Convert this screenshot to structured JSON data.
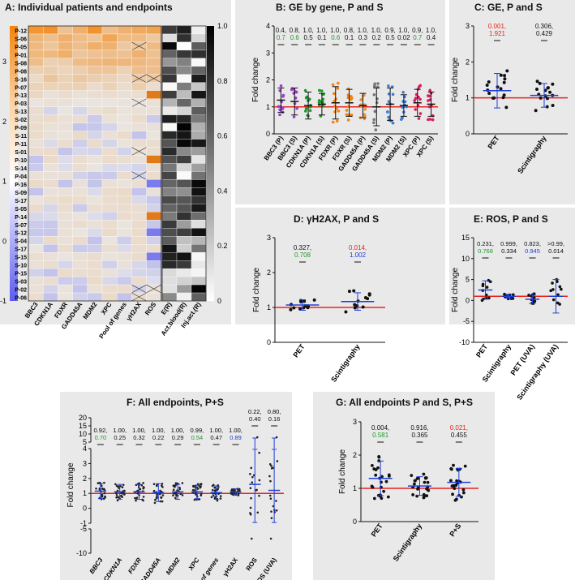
{
  "colors": {
    "red": "#e8231b",
    "green": "#1e9a2a",
    "blue": "#1d3fd6",
    "black": "#111111",
    "orange": "#f4840d",
    "purple": "#5c5cf0"
  },
  "chart_data": [
    {
      "id": "A",
      "type": "heatmap",
      "title": "A: Individual patients and endpoints",
      "rows": [
        "P-12",
        "S-06",
        "P-05",
        "P-01",
        "S-08",
        "P-08",
        "S-16",
        "P-07",
        "P-13",
        "P-03",
        "S-13",
        "S-02",
        "P-09",
        "S-11",
        "P-11",
        "S-01",
        "P-10",
        "S-14",
        "P-04",
        "P-16",
        "S-09",
        "S-17",
        "S-05",
        "P-14",
        "S-07",
        "S-12",
        "S-04",
        "S-17",
        "S-15",
        "S-10",
        "P-15",
        "S-03",
        "P-02",
        "P-06"
      ],
      "gene_columns": [
        "BBC3",
        "CDKN1A",
        "FDXR",
        "GADD45A",
        "MDM2",
        "XPC",
        "Pool of genes",
        "γH2AX",
        "ROS"
      ],
      "dose_columns": [
        "E(R)",
        "Act.blood(R)",
        "Inj.act.(R)"
      ],
      "left_scale": {
        "ticks": [
          3,
          2,
          1,
          0,
          -1
        ],
        "range": [
          -1,
          3.6
        ]
      },
      "right_scale": {
        "ticks": [
          "1.0",
          "0.8",
          "0.6",
          "0.4",
          "0.2",
          "0"
        ],
        "range": [
          0,
          1
        ]
      }
    },
    {
      "id": "B",
      "type": "scatter",
      "title": "B: GE by gene, P and S",
      "categories": [
        "BBC3 (P)",
        "BBC3 (S)",
        "CDKN1A (P)",
        "CDKN1A (S)",
        "FDXR (P)",
        "FDXR (S)",
        "GADD45A (P)",
        "GADD45A (S)",
        "MDM2 (P)",
        "MDM2 (S)",
        "XPC (P)",
        "XPC (S)"
      ],
      "ylabel": "Fold change",
      "ylim": [
        0,
        4
      ],
      "yticks": [
        0,
        1,
        2,
        3,
        4
      ],
      "means": [
        1.25,
        1.2,
        1.05,
        1.1,
        1.15,
        1.15,
        1.05,
        1.0,
        1.1,
        1.05,
        1.15,
        1.1
      ],
      "sd": [
        0.45,
        0.5,
        0.5,
        0.4,
        0.6,
        0.5,
        0.45,
        0.7,
        0.6,
        0.4,
        0.5,
        0.45
      ],
      "annot1": [
        "0.4,",
        "0.8,",
        "1.0,",
        "1.0,",
        "1.0,",
        "0.8,",
        "1.0,",
        "1.0,",
        "0.9,",
        "1.0,",
        "0.9,",
        "1.0,"
      ],
      "annot2": [
        "0.7",
        "0.6",
        "0.5",
        "0.1",
        "0.6",
        "0.1",
        "0.3",
        "0.2",
        "0.5",
        "0.02",
        "0.7",
        "0.4"
      ],
      "annot2_color": [
        "green",
        "green",
        "black",
        "black",
        "green",
        "black",
        "black",
        "black",
        "black",
        "black",
        "green",
        "black"
      ]
    },
    {
      "id": "C",
      "type": "scatter",
      "title": "C: GE, P and S",
      "categories": [
        "PET",
        "Scintigraphy"
      ],
      "ylabel": "Fold change",
      "ylim": [
        0,
        3
      ],
      "yticks": [
        0,
        1,
        2,
        3
      ],
      "means": [
        1.2,
        1.07
      ],
      "sd": [
        0.48,
        0.33
      ],
      "annot1": [
        "0.001,",
        "0.306,"
      ],
      "annot2": [
        "1.921",
        "0.429"
      ],
      "annot1_color": [
        "red",
        "black"
      ],
      "annot2_color": [
        "red",
        "black"
      ]
    },
    {
      "id": "D",
      "type": "scatter",
      "title": "D: γH2AX, P and S",
      "categories": [
        "PET",
        "Scintigraphy"
      ],
      "ylabel": "Fold change",
      "ylim": [
        0,
        3
      ],
      "yticks": [
        0,
        1,
        2,
        3
      ],
      "means": [
        1.07,
        1.17
      ],
      "sd": [
        0.15,
        0.25
      ],
      "annot1": [
        "0.327,",
        "0.014,"
      ],
      "annot2": [
        "0.708",
        "1.002"
      ],
      "annot1_color": [
        "black",
        "red"
      ],
      "annot2_color": [
        "green",
        "blue"
      ]
    },
    {
      "id": "E",
      "type": "scatter",
      "title": "E: ROS, P and S",
      "categories": [
        "PET",
        "Scintigraphy",
        "PET (UVA)",
        "Scintigraphy (UVA)"
      ],
      "ylabel": "Fold change",
      "ylim": [
        -10,
        15
      ],
      "yticks": [
        -10,
        -5,
        0,
        5,
        10,
        15
      ],
      "means": [
        2.5,
        1.0,
        0.3,
        1.0
      ],
      "sd": [
        2.2,
        0.5,
        1.0,
        4.0
      ],
      "annot1": [
        "0.231,",
        "0.999,",
        "0.823,",
        ">0.99,"
      ],
      "annot2": [
        "0.768",
        "0.334",
        "0.945",
        "0.014"
      ],
      "annot2_color": [
        "green",
        "black",
        "blue",
        "black"
      ]
    },
    {
      "id": "F",
      "type": "scatter",
      "title": "F: All endpoints, P+S",
      "categories": [
        "BBC3",
        "CDKN1A",
        "FDXR",
        "GADD45A",
        "MDM2",
        "XPC",
        "Pool of genes",
        "γH2AX",
        "ROS",
        "ROS (UVA)"
      ],
      "ylabel": "Fold change",
      "yticks_lower": [
        -10,
        -5
      ],
      "yticks_main": [
        -1,
        0,
        1,
        2,
        3,
        4
      ],
      "yticks_upper": [
        5,
        10,
        15,
        20
      ],
      "means": [
        1.15,
        1.1,
        1.1,
        1.05,
        1.1,
        1.1,
        1.05,
        1.1,
        1.6,
        1.2
      ],
      "sd": [
        0.5,
        0.5,
        0.5,
        0.6,
        0.5,
        0.45,
        0.45,
        0.2,
        3.5,
        3.5
      ],
      "annot1": [
        "0.92,",
        "1.00,",
        "1.00,",
        "1.00,",
        "1.00,",
        "0.99,",
        "1.00,",
        "1.00,",
        "0.22,",
        "0.80,"
      ],
      "annot2": [
        "0.70",
        "0.25",
        "0.32",
        "0.22",
        "0.29",
        "0.54",
        "0.47",
        "0.89",
        "0.40",
        "0.16"
      ],
      "annot2_color": [
        "green",
        "black",
        "black",
        "black",
        "black",
        "green",
        "black",
        "blue",
        "black",
        "black"
      ]
    },
    {
      "id": "G",
      "type": "scatter",
      "title": "G: All endpoints P and S, P+S",
      "categories": [
        "PET",
        "Scintigraphy",
        "P+S"
      ],
      "ylabel": "Fold change",
      "ylim": [
        0,
        3
      ],
      "yticks": [
        0,
        1,
        2,
        3
      ],
      "means": [
        1.3,
        1.07,
        1.18
      ],
      "sd": [
        0.52,
        0.28,
        0.42
      ],
      "annot1": [
        "0.004,",
        "0.916,",
        "0.021,"
      ],
      "annot2": [
        "0.581",
        "0.365",
        "0.455"
      ],
      "annot1_color": [
        "black",
        "black",
        "red"
      ],
      "annot2_color": [
        "green",
        "black",
        "black"
      ]
    }
  ]
}
